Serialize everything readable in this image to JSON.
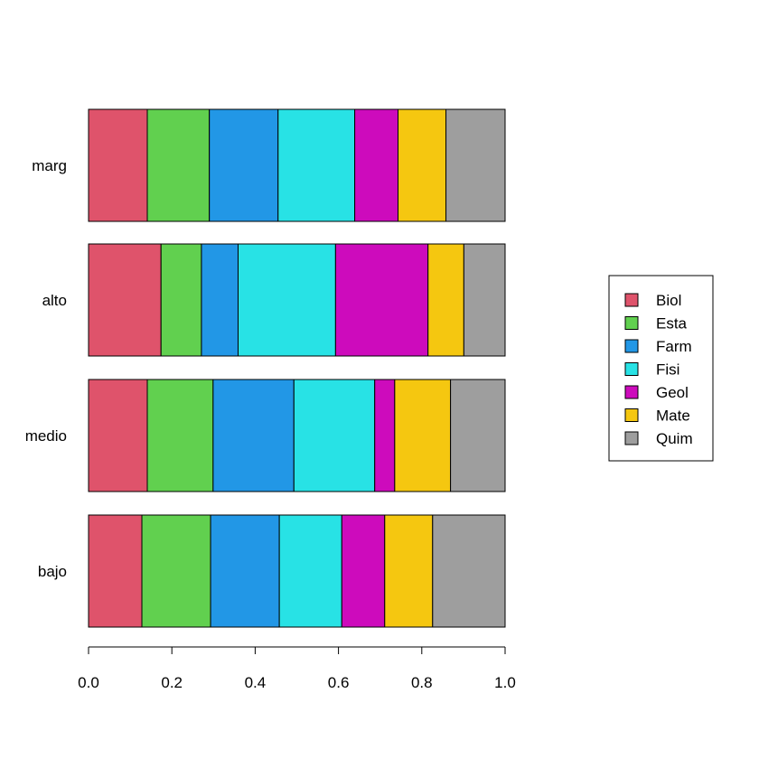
{
  "chart_data": {
    "type": "bar",
    "orientation": "horizontal",
    "stacked": true,
    "title": "",
    "xlabel": "",
    "ylabel": "",
    "xlim": [
      0,
      1
    ],
    "x_ticks": [
      "0.0",
      "0.2",
      "0.4",
      "0.6",
      "0.8",
      "1.0"
    ],
    "x_tick_values": [
      0,
      0.2,
      0.4,
      0.6,
      0.8,
      1.0
    ],
    "categories": [
      "bajo",
      "medio",
      "alto",
      "marg"
    ],
    "legend_position": "right",
    "grid": false,
    "series": [
      {
        "name": "Biol",
        "color": "#DF536B",
        "values": [
          0.128,
          0.141,
          0.174,
          0.141
        ]
      },
      {
        "name": "Esta",
        "color": "#61D04F",
        "values": [
          0.165,
          0.158,
          0.097,
          0.149
        ]
      },
      {
        "name": "Farm",
        "color": "#2297E6",
        "values": [
          0.165,
          0.194,
          0.088,
          0.165
        ]
      },
      {
        "name": "Fisi",
        "color": "#28E2E5",
        "values": [
          0.15,
          0.194,
          0.234,
          0.184
        ]
      },
      {
        "name": "Geol",
        "color": "#CD0BBC",
        "values": [
          0.103,
          0.048,
          0.222,
          0.104
        ]
      },
      {
        "name": "Mate",
        "color": "#F5C710",
        "values": [
          0.115,
          0.134,
          0.086,
          0.115
        ]
      },
      {
        "name": "Quim",
        "color": "#9E9E9E",
        "values": [
          0.174,
          0.131,
          0.099,
          0.142
        ]
      }
    ]
  }
}
